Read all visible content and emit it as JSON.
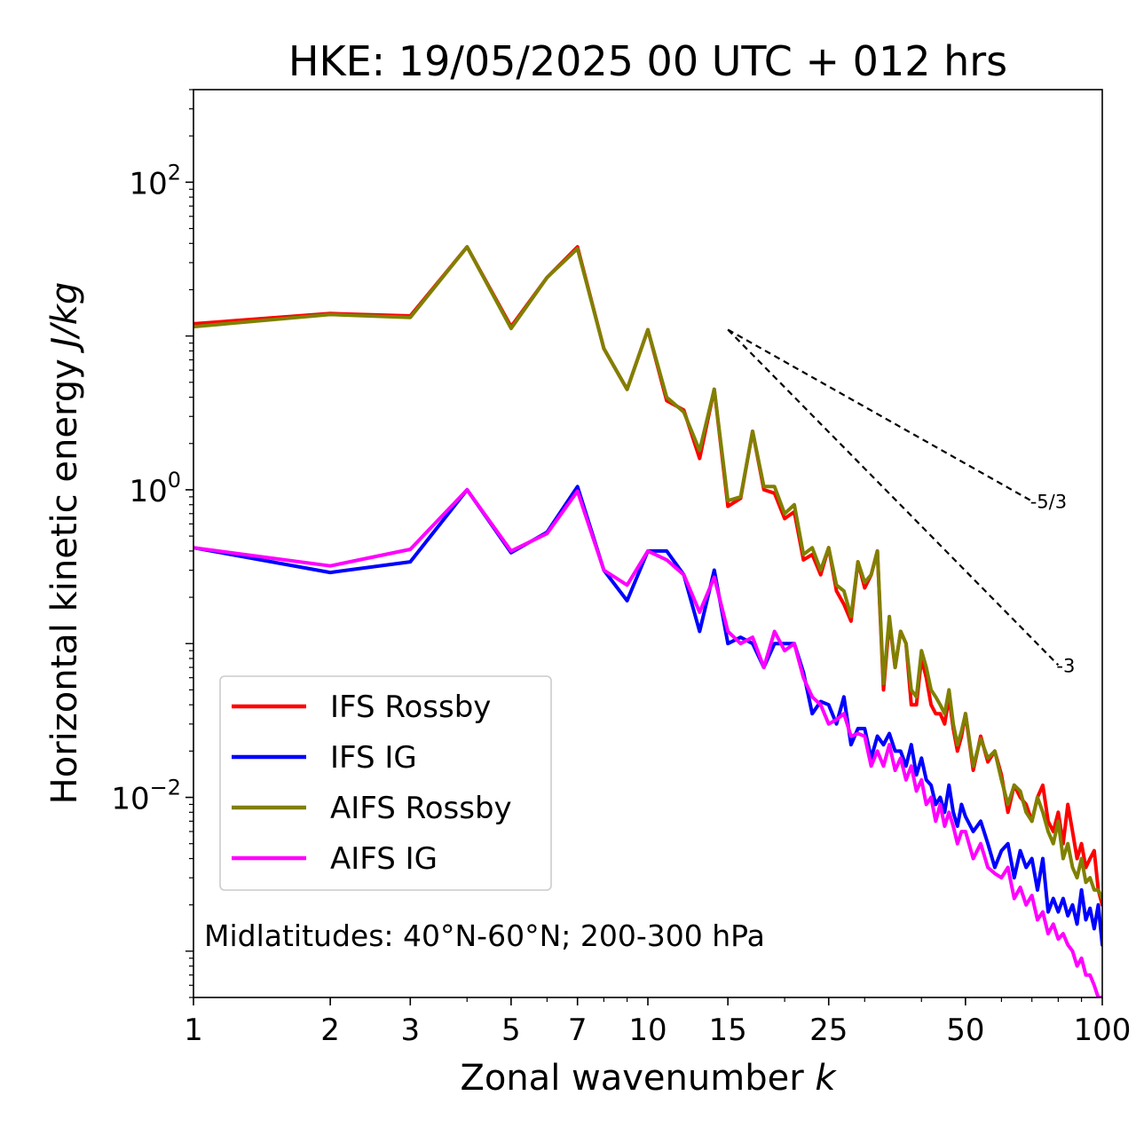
{
  "chart_data": {
    "type": "line",
    "title": "HKE: 19/05/2025 00 UTC + 012 hrs",
    "xlabel_prefix": "Zonal wavenumber",
    "xlabel_var": "k",
    "ylabel_prefix": "Horizontal kinetic energy",
    "ylabel_units": "J/kg",
    "xscale": "log",
    "yscale": "log",
    "xlim": [
      1,
      100
    ],
    "ylim": [
      0.0005,
      400
    ],
    "x_ticks": [
      {
        "value": 1,
        "label": "1"
      },
      {
        "value": 2,
        "label": "2"
      },
      {
        "value": 3,
        "label": "3"
      },
      {
        "value": 5,
        "label": "5"
      },
      {
        "value": 7,
        "label": "7"
      },
      {
        "value": 10,
        "label": "10"
      },
      {
        "value": 15,
        "label": "15"
      },
      {
        "value": 25,
        "label": "25"
      },
      {
        "value": 50,
        "label": "50"
      },
      {
        "value": 100,
        "label": "100"
      }
    ],
    "y_ticks": [
      {
        "value": 100,
        "base": "10",
        "exp": "2"
      },
      {
        "value": 1,
        "base": "10",
        "exp": "0"
      },
      {
        "value": 0.01,
        "base": "10",
        "exp": "−2"
      }
    ],
    "legend_position": "lower-left",
    "annotation": "Midlatitudes: 40°N-60°N; 200-300 hPa",
    "slope_lines": [
      {
        "label": "-5/3",
        "slope": -1.6667,
        "x0": 15,
        "y0": 11,
        "x1": 70
      },
      {
        "label": "-3",
        "slope": -3,
        "x0": 15,
        "y0": 11,
        "x1": 80
      }
    ],
    "series": [
      {
        "name": "IFS Rossby",
        "color": "#ff0000",
        "x": [
          1,
          2,
          3,
          4,
          5,
          6,
          7,
          8,
          9,
          10,
          11,
          12,
          13,
          14,
          15,
          16,
          17,
          18,
          19,
          20,
          21,
          22,
          23,
          24,
          25,
          26,
          27,
          28,
          29,
          30,
          31,
          32,
          33,
          34,
          35,
          36,
          37,
          38,
          39,
          40,
          41,
          42,
          43,
          44,
          45,
          46,
          47,
          48,
          49,
          50,
          52,
          54,
          56,
          58,
          60,
          62,
          64,
          66,
          68,
          70,
          72,
          74,
          76,
          78,
          80,
          82,
          84,
          86,
          88,
          90,
          92,
          94,
          96,
          98,
          100
        ],
        "y": [
          12,
          14,
          13.5,
          38,
          11.5,
          24,
          38,
          8.3,
          4.5,
          11,
          3.8,
          3.3,
          1.6,
          4.5,
          0.78,
          0.88,
          2.4,
          1.0,
          0.95,
          0.65,
          0.72,
          0.35,
          0.38,
          0.28,
          0.42,
          0.22,
          0.18,
          0.14,
          0.34,
          0.23,
          0.28,
          0.4,
          0.05,
          0.14,
          0.07,
          0.12,
          0.1,
          0.04,
          0.04,
          0.08,
          0.06,
          0.04,
          0.035,
          0.035,
          0.03,
          0.045,
          0.028,
          0.02,
          0.025,
          0.035,
          0.015,
          0.025,
          0.017,
          0.02,
          0.014,
          0.008,
          0.012,
          0.01,
          0.009,
          0.007,
          0.01,
          0.012,
          0.007,
          0.006,
          0.008,
          0.005,
          0.009,
          0.006,
          0.004,
          0.005,
          0.0035,
          0.004,
          0.0045,
          0.0025,
          0.002
        ]
      },
      {
        "name": "IFS IG",
        "color": "#0000ff",
        "x": [
          1,
          2,
          3,
          4,
          5,
          6,
          7,
          8,
          9,
          10,
          11,
          12,
          13,
          14,
          15,
          16,
          17,
          18,
          19,
          20,
          21,
          22,
          23,
          24,
          25,
          26,
          27,
          28,
          29,
          30,
          31,
          32,
          33,
          34,
          35,
          36,
          37,
          38,
          39,
          40,
          41,
          42,
          43,
          44,
          45,
          46,
          47,
          48,
          49,
          50,
          52,
          54,
          56,
          58,
          60,
          62,
          64,
          66,
          68,
          70,
          72,
          74,
          76,
          78,
          80,
          82,
          84,
          86,
          88,
          90,
          92,
          94,
          96,
          98,
          100
        ],
        "y": [
          0.42,
          0.29,
          0.34,
          1.0,
          0.39,
          0.53,
          1.05,
          0.3,
          0.19,
          0.4,
          0.4,
          0.28,
          0.12,
          0.3,
          0.1,
          0.11,
          0.1,
          0.07,
          0.1,
          0.1,
          0.1,
          0.065,
          0.035,
          0.042,
          0.04,
          0.03,
          0.045,
          0.022,
          0.028,
          0.028,
          0.018,
          0.025,
          0.022,
          0.026,
          0.02,
          0.02,
          0.016,
          0.022,
          0.014,
          0.018,
          0.013,
          0.012,
          0.009,
          0.01,
          0.008,
          0.012,
          0.008,
          0.0065,
          0.009,
          0.0075,
          0.006,
          0.007,
          0.005,
          0.0035,
          0.0045,
          0.005,
          0.003,
          0.0045,
          0.0035,
          0.004,
          0.0025,
          0.004,
          0.0018,
          0.0022,
          0.0018,
          0.0022,
          0.0017,
          0.002,
          0.0015,
          0.0025,
          0.0016,
          0.0019,
          0.0014,
          0.002,
          0.0011
        ]
      },
      {
        "name": "AIFS Rossby",
        "color": "#808000",
        "x": [
          1,
          2,
          3,
          4,
          5,
          6,
          7,
          8,
          9,
          10,
          11,
          12,
          13,
          14,
          15,
          16,
          17,
          18,
          19,
          20,
          21,
          22,
          23,
          24,
          25,
          26,
          27,
          28,
          29,
          30,
          31,
          32,
          33,
          34,
          35,
          36,
          37,
          38,
          39,
          40,
          41,
          42,
          43,
          44,
          45,
          46,
          47,
          48,
          49,
          50,
          52,
          54,
          56,
          58,
          60,
          62,
          64,
          66,
          68,
          70,
          72,
          74,
          76,
          78,
          80,
          82,
          84,
          86,
          88,
          90,
          92,
          94,
          96,
          98,
          100
        ],
        "y": [
          11.5,
          13.8,
          13.2,
          38,
          11.2,
          24,
          37,
          8.3,
          4.5,
          11,
          4.0,
          3.2,
          1.8,
          4.5,
          0.85,
          0.9,
          2.4,
          1.05,
          1.05,
          0.7,
          0.8,
          0.38,
          0.42,
          0.3,
          0.42,
          0.24,
          0.22,
          0.15,
          0.34,
          0.25,
          0.28,
          0.4,
          0.055,
          0.15,
          0.07,
          0.12,
          0.1,
          0.05,
          0.045,
          0.09,
          0.07,
          0.05,
          0.045,
          0.04,
          0.035,
          0.05,
          0.03,
          0.022,
          0.027,
          0.035,
          0.016,
          0.024,
          0.018,
          0.02,
          0.013,
          0.009,
          0.012,
          0.011,
          0.008,
          0.007,
          0.01,
          0.008,
          0.006,
          0.005,
          0.007,
          0.004,
          0.005,
          0.0035,
          0.003,
          0.004,
          0.0028,
          0.003,
          0.0025,
          0.0025,
          0.0022
        ]
      },
      {
        "name": "AIFS IG",
        "color": "#ff00ff",
        "x": [
          1,
          2,
          3,
          4,
          5,
          6,
          7,
          8,
          9,
          10,
          11,
          12,
          13,
          14,
          15,
          16,
          17,
          18,
          19,
          20,
          21,
          22,
          23,
          24,
          25,
          26,
          27,
          28,
          29,
          30,
          31,
          32,
          33,
          34,
          35,
          36,
          37,
          38,
          39,
          40,
          41,
          42,
          43,
          44,
          45,
          46,
          47,
          48,
          49,
          50,
          52,
          54,
          56,
          58,
          60,
          62,
          64,
          66,
          68,
          70,
          72,
          74,
          76,
          78,
          80,
          82,
          84,
          86,
          88,
          90,
          92,
          94,
          96,
          98,
          100
        ],
        "y": [
          0.42,
          0.32,
          0.41,
          1.0,
          0.4,
          0.52,
          0.98,
          0.3,
          0.24,
          0.4,
          0.35,
          0.28,
          0.16,
          0.27,
          0.12,
          0.1,
          0.11,
          0.07,
          0.12,
          0.09,
          0.1,
          0.06,
          0.045,
          0.04,
          0.03,
          0.032,
          0.035,
          0.025,
          0.026,
          0.025,
          0.016,
          0.02,
          0.016,
          0.022,
          0.015,
          0.018,
          0.013,
          0.016,
          0.011,
          0.013,
          0.009,
          0.01,
          0.007,
          0.009,
          0.0065,
          0.008,
          0.0065,
          0.005,
          0.006,
          0.006,
          0.004,
          0.005,
          0.0035,
          0.0032,
          0.003,
          0.0035,
          0.0022,
          0.0026,
          0.002,
          0.0023,
          0.0016,
          0.0018,
          0.0013,
          0.0015,
          0.0012,
          0.0013,
          0.0011,
          0.001,
          0.0008,
          0.0009,
          0.0007,
          0.0007,
          0.0006,
          0.0005,
          0.0005
        ]
      }
    ]
  }
}
